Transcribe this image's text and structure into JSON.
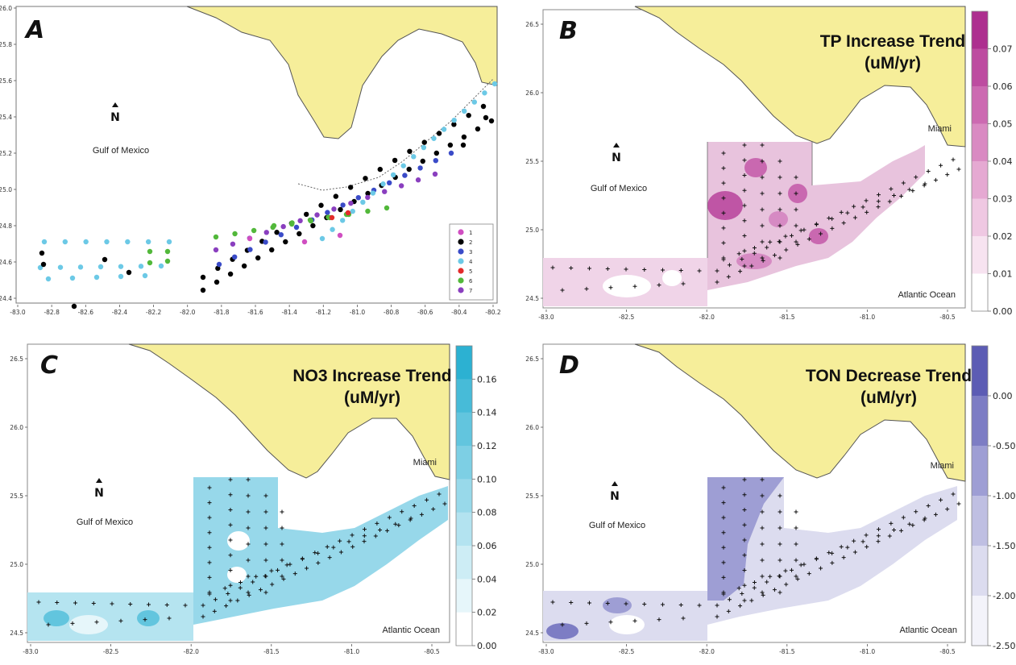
{
  "colors": {
    "land": "#F6EE9A",
    "coast": "#555555",
    "tp_ramp": [
      "#ffffff",
      "#f7e3f0",
      "#efc8e2",
      "#e5a9d2",
      "#d98ac2",
      "#cc6ab1",
      "#bd4ca0",
      "#ad2f8f"
    ],
    "no3_ramp": [
      "#ffffff",
      "#e6f6fa",
      "#cdedf5",
      "#b3e3f0",
      "#98d9ea",
      "#7dcfe4",
      "#62c5de",
      "#47bbd8",
      "#2cb1d2"
    ],
    "ton_ramp": [
      "#5c5cb4",
      "#7d7dc4",
      "#9e9ed4",
      "#bfbfe2",
      "#dcdcef",
      "#f3f3fa"
    ],
    "stations": {
      "1": "#d04ec1",
      "2": "#000000",
      "3": "#3a4bc8",
      "4": "#6cc9e6",
      "5": "#e32b2b",
      "6": "#52b83a",
      "7": "#8a3fbf"
    }
  },
  "panels": [
    {
      "id": "A",
      "label": "A",
      "north": "N",
      "gulf": "Gulf of Mexico",
      "xticks": [
        "-83.0",
        "-82.8",
        "-82.6",
        "-82.4",
        "-82.2",
        "-82.0",
        "-81.8",
        "-81.6",
        "-81.4",
        "-81.2",
        "-81.0",
        "-80.8",
        "-80.6",
        "-80.4",
        "-80.2"
      ],
      "yticks": [
        "24.4",
        "24.6",
        "24.8",
        "25.0",
        "25.2",
        "25.4",
        "25.6",
        "25.8",
        "26.0"
      ],
      "legend": [
        "1",
        "2",
        "3",
        "4",
        "5",
        "6",
        "7"
      ]
    },
    {
      "id": "B",
      "label": "B",
      "north": "N",
      "title1": "TP Increase Trend",
      "title2": "(uM/yr)",
      "gulf": "Gulf of Mexico",
      "miami": "Miami",
      "atlantic": "Atlantic Ocean",
      "xticks": [
        "-83.0",
        "-82.5",
        "-82.0",
        "-81.5",
        "-81.0",
        "-80.5"
      ],
      "yticks": [
        "24.5",
        "25.0",
        "25.5",
        "26.0",
        "26.5"
      ],
      "cbar": [
        "0.07",
        "0.06",
        "0.05",
        "0.04",
        "0.03",
        "0.02",
        "0.01",
        "0.00"
      ]
    },
    {
      "id": "C",
      "label": "C",
      "north": "N",
      "title1": "NO3 Increase Trend",
      "title2": "(uM/yr)",
      "gulf": "Gulf of Mexico",
      "miami": "Miami",
      "atlantic": "Atlantic Ocean",
      "xticks": [
        "-83.0",
        "-82.5",
        "-82.0",
        "-81.5",
        "-81.0",
        "-80.5"
      ],
      "yticks": [
        "24.5",
        "25.0",
        "25.5",
        "26.0",
        "26.5"
      ],
      "cbar": [
        "0.16",
        "0.14",
        "0.12",
        "0.10",
        "0.08",
        "0.06",
        "0.04",
        "0.02",
        "0.00"
      ]
    },
    {
      "id": "D",
      "label": "D",
      "north": "N",
      "title1": "TON Decrease Trend",
      "title2": "(uM/yr)",
      "gulf": "Gulf of Mexico",
      "miami": "Miami",
      "atlantic": "Atlantic Ocean",
      "xticks": [
        "-83.0",
        "-82.5",
        "-82.0",
        "-81.5",
        "-81.0",
        "-80.5"
      ],
      "yticks": [
        "24.5",
        "25.0",
        "25.5",
        "26.0",
        "26.5"
      ],
      "cbar": [
        "0.00",
        "-0.50",
        "-1.00",
        "-1.50",
        "-2.00",
        "-2.50"
      ]
    }
  ]
}
